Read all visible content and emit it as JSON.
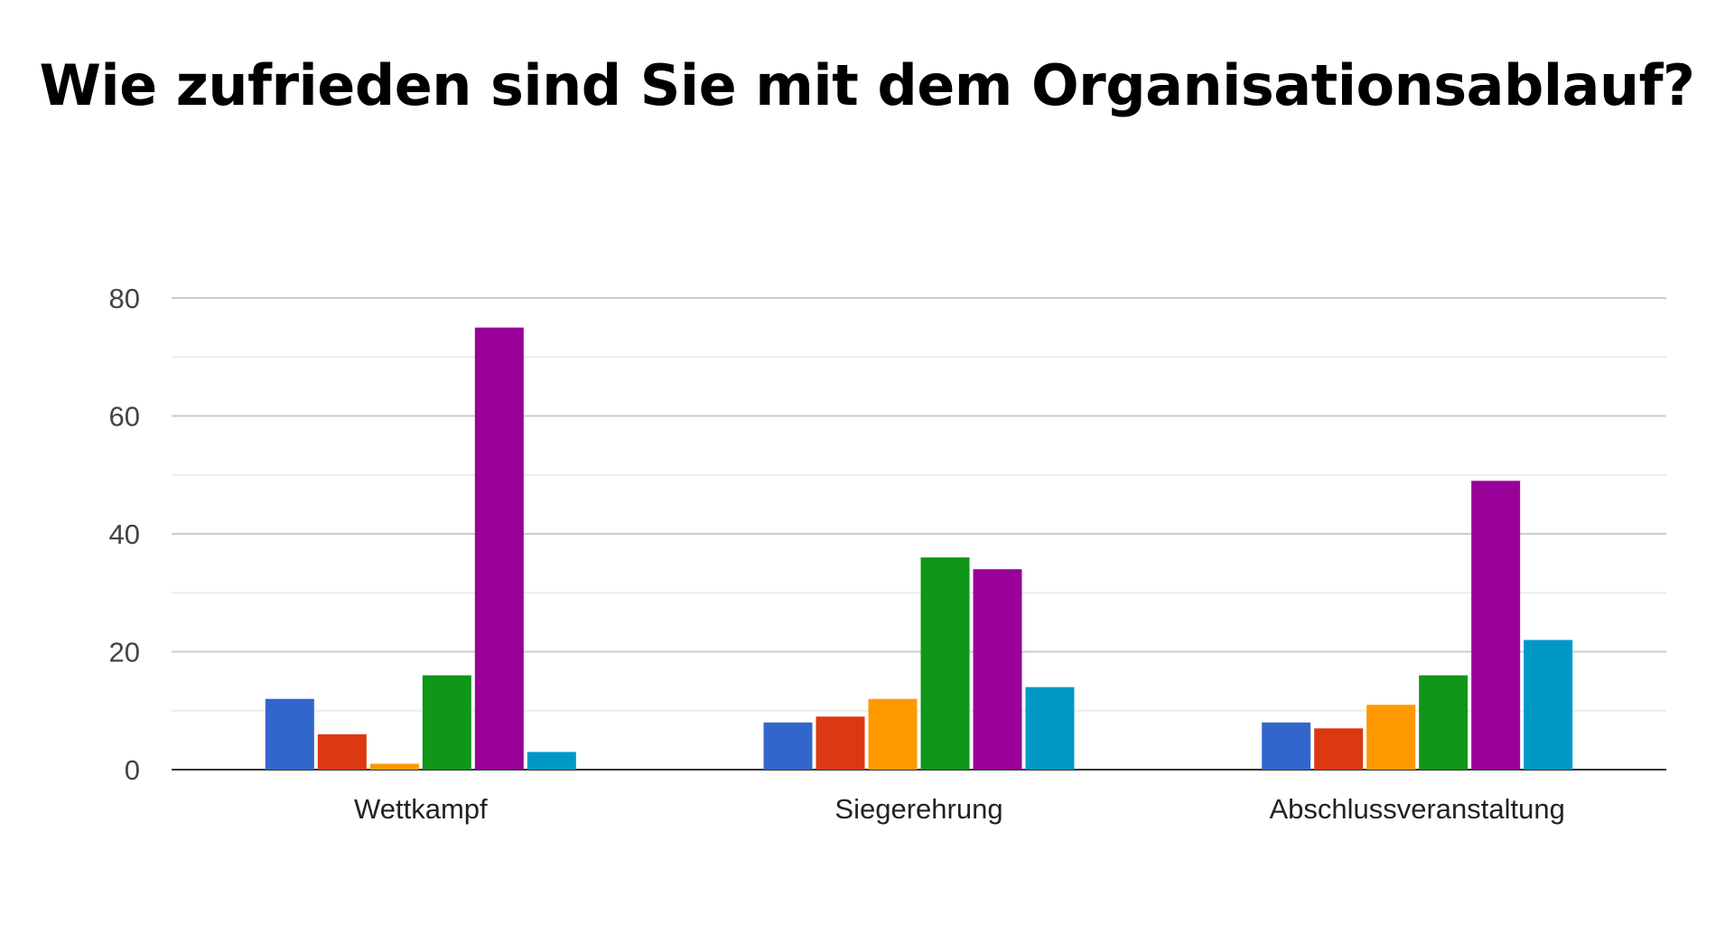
{
  "chart_data": {
    "type": "bar",
    "title": "Wie zufrieden sind Sie mit dem Organisationsablauf?",
    "categories": [
      "Wettkampf",
      "Siegerehrung",
      "Abschlussveranstaltung"
    ],
    "series": [
      {
        "color": "#3366cc",
        "values": [
          12,
          8,
          8
        ]
      },
      {
        "color": "#dc3912",
        "values": [
          6,
          9,
          7
        ]
      },
      {
        "color": "#ff9900",
        "values": [
          1,
          12,
          11
        ]
      },
      {
        "color": "#109618",
        "values": [
          16,
          36,
          16
        ]
      },
      {
        "color": "#990099",
        "values": [
          75,
          34,
          49
        ]
      },
      {
        "color": "#0099c6",
        "values": [
          3,
          14,
          22
        ]
      }
    ],
    "yticks": [
      0,
      20,
      40,
      60,
      80
    ],
    "ylim": [
      0,
      80
    ],
    "xlabel": "",
    "ylabel": "",
    "grid": true,
    "legend": "none"
  }
}
